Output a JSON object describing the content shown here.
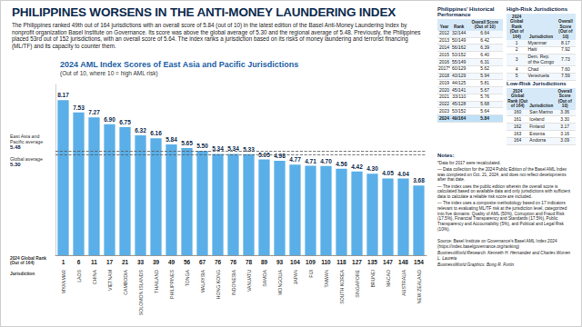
{
  "header": {
    "title": "PHILIPPINES WORSENS IN THE ANTI-MONEY LAUNDERING INDEX",
    "intro": "The Philippines ranked 49th out of 164 jurisdictions with an overall score of 5.84 (out of 10) in the latest edition of the Basel Anti-Money Laundering Index by nonprofit organization Basel Institute on Governance. Its score was above the global average of 5.30 and the regional average of 5.48. Previously, the Philippines placed 53rd out of 152 jurisdictions, with an overall score of 5.64. The index ranks a jurisdiction based on its risks of money laundering and terrorist financing (ML/TF) and its capacity to counter them."
  },
  "chart_data": {
    "type": "bar",
    "title": "2024 AML Index Scores of East Asia and Pacific Jurisdictions",
    "subtitle": "(Out of 10, where 10 = high AML risk)",
    "categories": [
      "MYANMAR",
      "LAOS",
      "CHINA",
      "VIETNAM",
      "CAMBODIA",
      "SOLOMON ISLANDS",
      "THAILAND",
      "PHILIPPINES",
      "TONGA",
      "MALAYSIA",
      "HONG KONG",
      "INDONESIA",
      "VANUATU",
      "SAMOA",
      "MONGOLIA",
      "JAPAN",
      "FIJI",
      "TAIWAN",
      "SOUTH KOREA",
      "SINGAPORE",
      "BRUNEI",
      "MACAO",
      "AUSTRALIA",
      "NEW ZEALAND"
    ],
    "category_label": "Jurisdiction",
    "ranks": [
      1,
      6,
      11,
      17,
      21,
      33,
      39,
      49,
      56,
      67,
      76,
      76,
      78,
      89,
      93,
      104,
      109,
      110,
      118,
      127,
      135,
      147,
      148,
      154
    ],
    "rank_label": "2024 Global Rank (Out of 164)",
    "values": [
      8.17,
      7.53,
      7.27,
      6.9,
      6.75,
      6.32,
      6.16,
      5.84,
      5.65,
      5.5,
      5.34,
      5.34,
      5.33,
      5.05,
      4.98,
      4.77,
      4.71,
      4.7,
      4.56,
      4.42,
      4.3,
      4.05,
      4.04,
      3.68
    ],
    "value_labels": [
      "8.17",
      "7.53",
      "7.27",
      "6.90",
      "6.75",
      "6.32",
      "6.16",
      "5.84",
      "5.65",
      "5.50",
      "5.34",
      "5.34",
      "5.33",
      "5.05",
      "4.98",
      "4.77",
      "4.71",
      "4.70",
      "4.56",
      "4.42",
      "4.30",
      "4.05",
      "4.04",
      "3.68"
    ],
    "color": "#5aafe8",
    "data_labels": true,
    "tick_labels": "x",
    "grid": false,
    "ylim": [
      0,
      9
    ],
    "yticks": [],
    "reference_lines": [
      {
        "label": "East Asia and Pacific average",
        "value": 5.48,
        "value_label": "5.48"
      },
      {
        "label": "Global average",
        "value": 5.3,
        "value_label": "5.30"
      }
    ]
  },
  "side": {
    "historical": {
      "title": "Philippines' Historical Performance",
      "columns": [
        "Year",
        "Rank",
        "Overall Score (Out of 10)"
      ],
      "rows": [
        [
          "2012",
          "32/144",
          "6.64"
        ],
        [
          "2013",
          "50/149",
          "6.42"
        ],
        [
          "2014",
          "56/162",
          "6.39"
        ],
        [
          "2015",
          "53/152",
          "6.40"
        ],
        [
          "2016",
          "55/149",
          "6.31"
        ],
        [
          "2017*",
          "60/129",
          "5.62"
        ],
        [
          "2018",
          "43/129",
          "5.94"
        ],
        [
          "2019",
          "44/125",
          "5.81"
        ],
        [
          "2020",
          "45/141",
          "5.67"
        ],
        [
          "2021",
          "33/110",
          "5.76"
        ],
        [
          "2022",
          "45/128",
          "5.68"
        ],
        [
          "2023",
          "53/152",
          "5.64"
        ],
        [
          "2024",
          "49/164",
          "5.84"
        ]
      ]
    },
    "high_risk": {
      "title": "High-Risk Jurisdictions",
      "columns": [
        "2024 Global Rank (Out of 164)",
        "Jurisdiction",
        "Overall Score (Out of 10)"
      ],
      "rows": [
        [
          "1",
          "Myanmar",
          "8.17"
        ],
        [
          "2",
          "Haiti",
          "7.92"
        ],
        [
          "3",
          "Dem. Rep. of the Congo",
          "7.73"
        ],
        [
          "4",
          "Chad",
          "7.60"
        ],
        [
          "5",
          "Venezuela",
          "7.59"
        ]
      ]
    },
    "low_risk": {
      "title": "Low-Risk Jurisdictions",
      "columns": [
        "2024 Global Rank (Out of 164)",
        "Jurisdiction",
        "Overall Score (Out of 10)"
      ],
      "rows": [
        [
          "160",
          "San Marino",
          "3.36"
        ],
        [
          "161",
          "Iceland",
          "3.30"
        ],
        [
          "162",
          "Finland",
          "3.17"
        ],
        [
          "163",
          "Estonia",
          "3.16"
        ],
        [
          "164",
          "Andorra",
          "3.09"
        ]
      ]
    },
    "notes": {
      "title": "Notes:",
      "items": [
        "*Data for 2017 were recalculated.",
        "— Data collection for the 2024 Public Edition of the Basel AML Index was completed on Oct. 21, 2024, and does not reflect developments after that date.",
        "— The index uses the public edition wherein the overall score is calculated based on available data and only jurisdictions with sufficient data to calculate a reliable risk score are included.",
        "— The index uses a composite methodology based on 17 indicators relevant to evaluating ML/TF risk at the jurisdiction level, categorized into five domains: Quality of AML (50%), Corruption and Fraud Risk (17.5%), Financial Transparency and Standards (17.5%), Public Transparency and Accountability (5%), and Political and Legal Risk (10%)."
      ]
    },
    "source": [
      "Source: Basel Institute on Governance's Basel AML Index 2024 (https://index.baselgovernance.org/ranking)",
      "BusinessWorld Research: Kenneth H. Hernandez and Charles Worren L. Laureta",
      "BusinessWorld Graphics: Bong R. Fortin"
    ]
  }
}
